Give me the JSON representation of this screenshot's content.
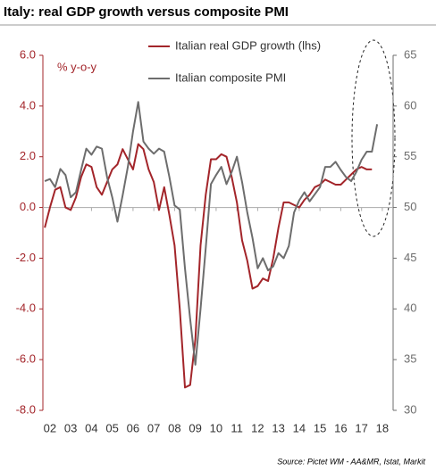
{
  "chart_data": {
    "type": "line",
    "title": "Italy: real GDP growth versus composite PMI",
    "y_label": "% y-o-y",
    "source": "Source: Pictet WM - AA&MR, Istat, Markit",
    "x": [
      2001.75,
      2002,
      2002.25,
      2002.5,
      2002.75,
      2003,
      2003.25,
      2003.5,
      2003.75,
      2004,
      2004.25,
      2004.5,
      2004.75,
      2005,
      2005.25,
      2005.5,
      2005.75,
      2006,
      2006.25,
      2006.5,
      2006.75,
      2007,
      2007.25,
      2007.5,
      2007.75,
      2008,
      2008.25,
      2008.5,
      2008.75,
      2009,
      2009.25,
      2009.5,
      2009.75,
      2010,
      2010.25,
      2010.5,
      2010.75,
      2011,
      2011.25,
      2011.5,
      2011.75,
      2012,
      2012.25,
      2012.5,
      2012.75,
      2013,
      2013.25,
      2013.5,
      2013.75,
      2014,
      2014.25,
      2014.5,
      2014.75,
      2015,
      2015.25,
      2015.5,
      2015.75,
      2016,
      2016.25,
      2016.5,
      2016.75,
      2017,
      2017.25,
      2017.5,
      2017.75
    ],
    "series": [
      {
        "name": "Italian real GDP growth (lhs)",
        "color": "#a3252a",
        "axis": "y",
        "values": [
          -0.8,
          0.0,
          0.7,
          0.8,
          0.0,
          -0.1,
          0.4,
          1.2,
          1.7,
          1.6,
          0.8,
          0.5,
          1.0,
          1.5,
          1.7,
          2.3,
          1.9,
          1.5,
          2.5,
          2.3,
          1.5,
          1.0,
          -0.1,
          0.8,
          -0.3,
          -1.5,
          -4.0,
          -7.1,
          -7.0,
          -5.2,
          -1.5,
          0.5,
          1.9,
          1.9,
          2.1,
          2.0,
          1.2,
          0.2,
          -1.3,
          -2.1,
          -3.2,
          -3.1,
          -2.8,
          -2.9,
          -2.0,
          -0.8,
          0.2,
          0.2,
          0.1,
          0.0,
          0.3,
          0.5,
          0.8,
          0.9,
          1.1,
          1.0,
          0.9,
          0.9,
          1.1,
          1.3,
          1.5,
          1.6,
          1.5,
          1.5,
          null
        ]
      },
      {
        "name": "Italian composite PMI",
        "color": "#6d6d6d",
        "axis": "y2",
        "values": [
          52.6,
          52.8,
          52.0,
          53.8,
          53.2,
          51.0,
          51.5,
          53.7,
          55.8,
          55.2,
          56.0,
          55.8,
          53.0,
          51.0,
          48.6,
          51.2,
          54.0,
          57.5,
          60.4,
          56.5,
          55.8,
          55.3,
          55.8,
          55.5,
          53.0,
          50.2,
          49.8,
          44.0,
          39.0,
          34.5,
          40.0,
          46.0,
          52.3,
          53.2,
          54.0,
          52.3,
          53.5,
          55.0,
          52.5,
          49.5,
          47.0,
          44.0,
          45.0,
          43.8,
          44.2,
          45.5,
          45.0,
          46.2,
          49.5,
          50.7,
          51.5,
          50.6,
          51.3,
          52.0,
          54.0,
          54.0,
          54.5,
          53.7,
          53.0,
          52.6,
          53.5,
          54.7,
          55.5,
          55.5,
          58.2
        ]
      }
    ],
    "xlim": [
      2001.66,
      2018.52
    ],
    "xticks": [
      {
        "value": 2002,
        "label": "02"
      },
      {
        "value": 2003,
        "label": "03"
      },
      {
        "value": 2004,
        "label": "04"
      },
      {
        "value": 2005,
        "label": "05"
      },
      {
        "value": 2006,
        "label": "06"
      },
      {
        "value": 2007,
        "label": "07"
      },
      {
        "value": 2008,
        "label": "08"
      },
      {
        "value": 2009,
        "label": "09"
      },
      {
        "value": 2010,
        "label": "10"
      },
      {
        "value": 2011,
        "label": "11"
      },
      {
        "value": 2012,
        "label": "12"
      },
      {
        "value": 2013,
        "label": "13"
      },
      {
        "value": 2014,
        "label": "14"
      },
      {
        "value": 2015,
        "label": "15"
      },
      {
        "value": 2016,
        "label": "16"
      },
      {
        "value": 2017,
        "label": "17"
      },
      {
        "value": 2018,
        "label": "18"
      }
    ],
    "ylim": [
      -8,
      6
    ],
    "yticks": [
      {
        "value": -8,
        "label": "-8.0"
      },
      {
        "value": -6,
        "label": "-6.0"
      },
      {
        "value": -4,
        "label": "-4.0"
      },
      {
        "value": -2,
        "label": "-2.0"
      },
      {
        "value": 0,
        "label": "0.0"
      },
      {
        "value": 2,
        "label": "2.0"
      },
      {
        "value": 4,
        "label": "4.0"
      },
      {
        "value": 6,
        "label": "6.0"
      }
    ],
    "y2lim": [
      30,
      65
    ],
    "y2ticks": [
      30,
      35,
      40,
      45,
      50,
      55,
      60,
      65
    ],
    "grid": false
  }
}
